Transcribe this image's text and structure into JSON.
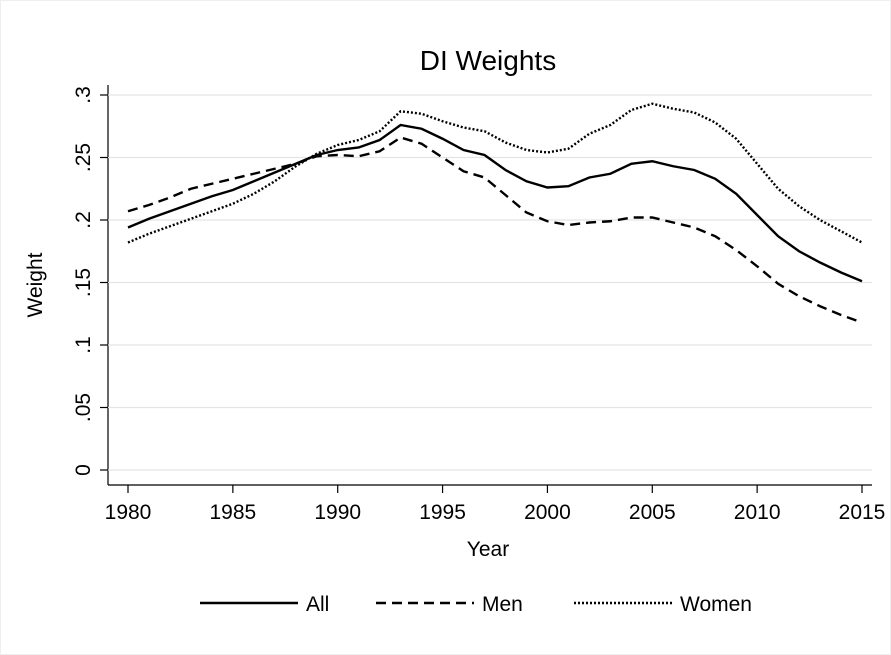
{
  "chart_data": {
    "type": "line",
    "title": "DI Weights",
    "x_label": "Year",
    "y_label": "Weight",
    "x": [
      1980,
      1981,
      1982,
      1983,
      1984,
      1985,
      1986,
      1987,
      1988,
      1989,
      1990,
      1991,
      1992,
      1993,
      1994,
      1995,
      1996,
      1997,
      1998,
      1999,
      2000,
      2001,
      2002,
      2003,
      2004,
      2005,
      2006,
      2007,
      2008,
      2009,
      2010,
      2011,
      2012,
      2013,
      2014,
      2015
    ],
    "series": [
      {
        "name": "All",
        "color": "#000000",
        "dash": "solid",
        "values": [
          0.194,
          0.201,
          0.207,
          0.213,
          0.219,
          0.224,
          0.231,
          0.238,
          0.245,
          0.252,
          0.256,
          0.258,
          0.264,
          0.276,
          0.273,
          0.265,
          0.256,
          0.252,
          0.24,
          0.231,
          0.226,
          0.227,
          0.234,
          0.237,
          0.245,
          0.247,
          0.243,
          0.24,
          0.233,
          0.221,
          0.204,
          0.187,
          0.175,
          0.166,
          0.158,
          0.151
        ]
      },
      {
        "name": "Men",
        "color": "#000000",
        "dash": "dashed",
        "values": [
          0.207,
          0.212,
          0.218,
          0.225,
          0.229,
          0.233,
          0.237,
          0.241,
          0.245,
          0.251,
          0.252,
          0.251,
          0.255,
          0.266,
          0.261,
          0.25,
          0.239,
          0.234,
          0.22,
          0.206,
          0.199,
          0.196,
          0.198,
          0.199,
          0.202,
          0.202,
          0.198,
          0.194,
          0.187,
          0.176,
          0.163,
          0.149,
          0.139,
          0.131,
          0.124,
          0.118
        ]
      },
      {
        "name": "Women",
        "color": "#000000",
        "dash": "dotted",
        "values": [
          0.182,
          0.189,
          0.195,
          0.201,
          0.207,
          0.213,
          0.221,
          0.231,
          0.243,
          0.253,
          0.26,
          0.264,
          0.271,
          0.287,
          0.285,
          0.279,
          0.274,
          0.271,
          0.262,
          0.256,
          0.254,
          0.257,
          0.269,
          0.276,
          0.288,
          0.293,
          0.289,
          0.286,
          0.278,
          0.265,
          0.245,
          0.225,
          0.211,
          0.2,
          0.191,
          0.182
        ]
      }
    ],
    "xlim": [
      1980,
      2015
    ],
    "xticks": [
      1980,
      1985,
      1990,
      1995,
      2000,
      2005,
      2010,
      2015
    ],
    "ylim": [
      0,
      0.3
    ],
    "yticks": [
      0,
      {
        "value": 0.05,
        "label": ".05"
      },
      {
        "value": 0.1,
        "label": ".1"
      },
      {
        "value": 0.15,
        "label": ".15"
      },
      {
        "value": 0.2,
        "label": ".2"
      },
      {
        "value": 0.25,
        "label": ".25"
      },
      {
        "value": 0.3,
        "label": ".3"
      }
    ],
    "grid": true,
    "legend": "bottom"
  }
}
